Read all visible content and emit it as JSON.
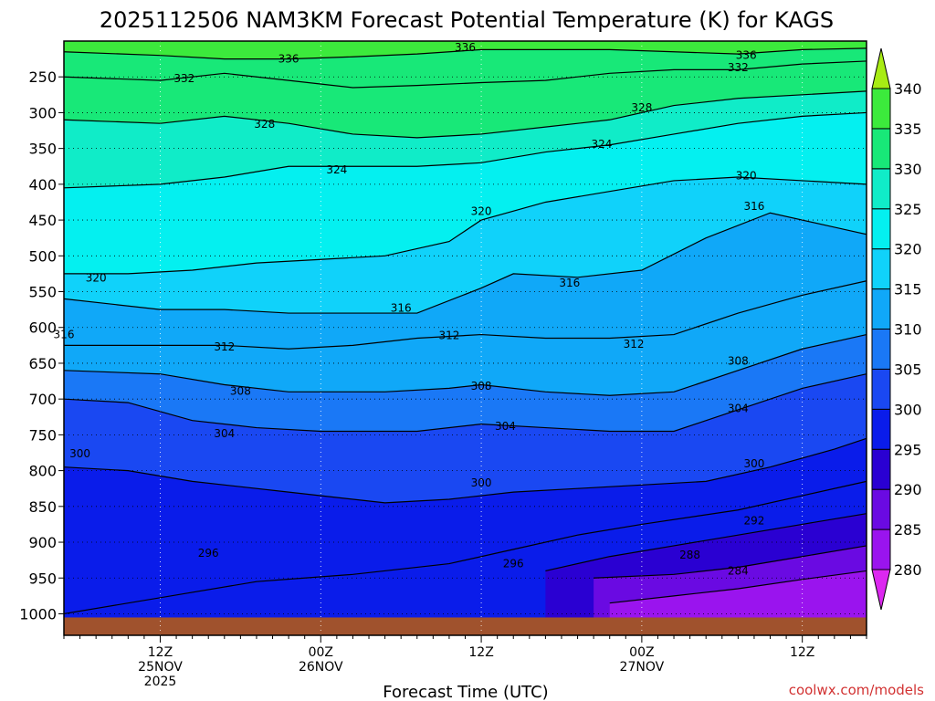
{
  "colors": {
    "ground": "#a0522d",
    "contour": "#000000",
    "credit": "#d23232"
  },
  "chart_data": {
    "type": "heatmap",
    "title": "2025112506 NAM3KM Forecast Potential Temperature (K) for KAGS",
    "xlabel": "Forecast Time (UTC)",
    "ylabel": "",
    "credit": "coolwx.com/models",
    "x_range_hours": [
      -6,
      44
    ],
    "y_range_hPa": [
      200,
      1030
    ],
    "y_ticks": [
      {
        "value": 250,
        "label": "250"
      },
      {
        "value": 300,
        "label": "300"
      },
      {
        "value": 350,
        "label": "350"
      },
      {
        "value": 400,
        "label": "400"
      },
      {
        "value": 450,
        "label": "450"
      },
      {
        "value": 500,
        "label": "500"
      },
      {
        "value": 550,
        "label": "550"
      },
      {
        "value": 600,
        "label": "600"
      },
      {
        "value": 650,
        "label": "650"
      },
      {
        "value": 700,
        "label": "700"
      },
      {
        "value": 750,
        "label": "750"
      },
      {
        "value": 800,
        "label": "800"
      },
      {
        "value": 850,
        "label": "850"
      },
      {
        "value": 900,
        "label": "900"
      },
      {
        "value": 950,
        "label": "950"
      },
      {
        "value": 1000,
        "label": "1000"
      }
    ],
    "x_ticks": [
      {
        "hours": 0,
        "label": "12Z",
        "sub": "25NOV",
        "sub2": "2025"
      },
      {
        "hours": 10,
        "label": "00Z",
        "sub": "26NOV",
        "sub2": ""
      },
      {
        "hours": 20,
        "label": "12Z",
        "sub": "",
        "sub2": ""
      },
      {
        "hours": 30,
        "label": "00Z",
        "sub": "27NOV",
        "sub2": ""
      },
      {
        "hours": 40,
        "label": "12Z",
        "sub": "",
        "sub2": ""
      }
    ],
    "colorbar": {
      "levels": [
        280,
        285,
        290,
        295,
        300,
        305,
        310,
        315,
        320,
        325,
        330,
        335,
        340
      ],
      "colors": [
        "#dc28f0",
        "#9a14ee",
        "#6a0ae2",
        "#2a00d2",
        "#0a1cea",
        "#1a48f2",
        "#1a78f6",
        "#10a8f8",
        "#10d2fa",
        "#04f0f0",
        "#10ecc8",
        "#18e878",
        "#3cea3c",
        "#a8ec14"
      ],
      "labels": [
        "280",
        "285",
        "290",
        "295",
        "300",
        "305",
        "310",
        "315",
        "320",
        "325",
        "330",
        "335",
        "340"
      ]
    },
    "contour_levels": [
      284,
      288,
      292,
      296,
      300,
      304,
      308,
      312,
      316,
      320,
      324,
      328,
      332,
      336
    ],
    "contours": [
      {
        "value": 284,
        "points": [
          [
            28,
            985
          ],
          [
            32,
            975
          ],
          [
            36,
            965
          ],
          [
            40,
            952
          ],
          [
            44,
            940
          ]
        ]
      },
      {
        "value": 288,
        "points": [
          [
            27,
            950
          ],
          [
            32,
            945
          ],
          [
            36,
            935
          ],
          [
            40,
            920
          ],
          [
            44,
            905
          ]
        ]
      },
      {
        "value": 292,
        "points": [
          [
            24,
            940
          ],
          [
            28,
            920
          ],
          [
            32,
            905
          ],
          [
            36,
            890
          ],
          [
            40,
            875
          ],
          [
            44,
            860
          ]
        ]
      },
      {
        "value": 296,
        "points": [
          [
            -6,
            1000
          ],
          [
            2,
            970
          ],
          [
            6,
            955
          ],
          [
            12,
            945
          ],
          [
            18,
            930
          ],
          [
            22,
            910
          ],
          [
            26,
            890
          ],
          [
            30,
            875
          ],
          [
            36,
            855
          ],
          [
            40,
            835
          ],
          [
            44,
            815
          ]
        ]
      },
      {
        "value": 300,
        "points": [
          [
            -6,
            795
          ],
          [
            -2,
            800
          ],
          [
            2,
            815
          ],
          [
            8,
            830
          ],
          [
            14,
            845
          ],
          [
            18,
            840
          ],
          [
            22,
            830
          ],
          [
            26,
            825
          ],
          [
            30,
            820
          ],
          [
            34,
            815
          ],
          [
            38,
            795
          ],
          [
            42,
            770
          ],
          [
            44,
            755
          ]
        ]
      },
      {
        "value": 304,
        "points": [
          [
            -6,
            700
          ],
          [
            -2,
            705
          ],
          [
            2,
            730
          ],
          [
            6,
            740
          ],
          [
            10,
            745
          ],
          [
            16,
            745
          ],
          [
            20,
            735
          ],
          [
            24,
            740
          ],
          [
            28,
            745
          ],
          [
            32,
            745
          ],
          [
            36,
            715
          ],
          [
            40,
            685
          ],
          [
            44,
            665
          ]
        ]
      },
      {
        "value": 308,
        "points": [
          [
            -6,
            660
          ],
          [
            0,
            665
          ],
          [
            4,
            680
          ],
          [
            8,
            690
          ],
          [
            14,
            690
          ],
          [
            18,
            685
          ],
          [
            20,
            680
          ],
          [
            24,
            690
          ],
          [
            28,
            695
          ],
          [
            32,
            690
          ],
          [
            36,
            660
          ],
          [
            40,
            630
          ],
          [
            44,
            610
          ]
        ]
      },
      {
        "value": 312,
        "points": [
          [
            -6,
            625
          ],
          [
            0,
            625
          ],
          [
            4,
            625
          ],
          [
            8,
            630
          ],
          [
            12,
            625
          ],
          [
            16,
            615
          ],
          [
            20,
            610
          ],
          [
            24,
            615
          ],
          [
            28,
            615
          ],
          [
            32,
            610
          ],
          [
            36,
            580
          ],
          [
            40,
            555
          ],
          [
            44,
            535
          ]
        ]
      },
      {
        "value": 316,
        "points": [
          [
            -6,
            560
          ],
          [
            0,
            575
          ],
          [
            4,
            575
          ],
          [
            8,
            580
          ],
          [
            12,
            580
          ],
          [
            16,
            580
          ],
          [
            20,
            545
          ],
          [
            22,
            525
          ],
          [
            26,
            530
          ],
          [
            30,
            520
          ],
          [
            34,
            475
          ],
          [
            38,
            440
          ],
          [
            42,
            460
          ],
          [
            44,
            470
          ]
        ]
      },
      {
        "value": 320,
        "points": [
          [
            -6,
            525
          ],
          [
            -2,
            525
          ],
          [
            2,
            520
          ],
          [
            6,
            510
          ],
          [
            10,
            505
          ],
          [
            14,
            500
          ],
          [
            18,
            480
          ],
          [
            20,
            450
          ],
          [
            24,
            425
          ],
          [
            28,
            410
          ],
          [
            32,
            395
          ],
          [
            36,
            390
          ],
          [
            40,
            395
          ],
          [
            44,
            400
          ]
        ]
      },
      {
        "value": 324,
        "points": [
          [
            -6,
            405
          ],
          [
            0,
            400
          ],
          [
            4,
            390
          ],
          [
            8,
            375
          ],
          [
            12,
            375
          ],
          [
            16,
            375
          ],
          [
            20,
            370
          ],
          [
            24,
            355
          ],
          [
            28,
            345
          ],
          [
            32,
            330
          ],
          [
            36,
            315
          ],
          [
            40,
            305
          ],
          [
            44,
            300
          ]
        ]
      },
      {
        "value": 328,
        "points": [
          [
            -6,
            310
          ],
          [
            0,
            315
          ],
          [
            4,
            305
          ],
          [
            8,
            315
          ],
          [
            12,
            330
          ],
          [
            16,
            335
          ],
          [
            20,
            330
          ],
          [
            24,
            320
          ],
          [
            28,
            310
          ],
          [
            32,
            290
          ],
          [
            36,
            280
          ],
          [
            40,
            275
          ],
          [
            44,
            270
          ]
        ]
      },
      {
        "value": 332,
        "points": [
          [
            -6,
            250
          ],
          [
            0,
            255
          ],
          [
            4,
            245
          ],
          [
            8,
            255
          ],
          [
            12,
            265
          ],
          [
            16,
            262
          ],
          [
            20,
            258
          ],
          [
            24,
            255
          ],
          [
            28,
            245
          ],
          [
            32,
            240
          ],
          [
            36,
            240
          ],
          [
            40,
            232
          ],
          [
            44,
            228
          ]
        ]
      },
      {
        "value": 336,
        "points": [
          [
            -6,
            215
          ],
          [
            0,
            220
          ],
          [
            4,
            225
          ],
          [
            8,
            225
          ],
          [
            12,
            222
          ],
          [
            16,
            218
          ],
          [
            20,
            212
          ],
          [
            24,
            212
          ],
          [
            28,
            212
          ],
          [
            32,
            215
          ],
          [
            36,
            218
          ],
          [
            40,
            212
          ],
          [
            44,
            210
          ]
        ]
      }
    ],
    "contour_labels": [
      {
        "text": "336",
        "hours": 19,
        "p": 209
      },
      {
        "text": "336",
        "hours": 8,
        "p": 225
      },
      {
        "text": "336",
        "hours": 36.5,
        "p": 220
      },
      {
        "text": "332",
        "hours": 1.5,
        "p": 252
      },
      {
        "text": "332",
        "hours": 36,
        "p": 237
      },
      {
        "text": "328",
        "hours": 6.5,
        "p": 316
      },
      {
        "text": "328",
        "hours": 30,
        "p": 293
      },
      {
        "text": "324",
        "hours": 11,
        "p": 380
      },
      {
        "text": "324",
        "hours": 27.5,
        "p": 344
      },
      {
        "text": "320",
        "hours": -4,
        "p": 531
      },
      {
        "text": "320",
        "hours": 20,
        "p": 438
      },
      {
        "text": "320",
        "hours": 36.5,
        "p": 388
      },
      {
        "text": "316",
        "hours": -6,
        "p": 610
      },
      {
        "text": "316",
        "hours": 15,
        "p": 573
      },
      {
        "text": "316",
        "hours": 25.5,
        "p": 538
      },
      {
        "text": "316",
        "hours": 37,
        "p": 431
      },
      {
        "text": "312",
        "hours": 4,
        "p": 627
      },
      {
        "text": "312",
        "hours": 18,
        "p": 611
      },
      {
        "text": "312",
        "hours": 29.5,
        "p": 623
      },
      {
        "text": "308",
        "hours": 5,
        "p": 689
      },
      {
        "text": "308",
        "hours": 20,
        "p": 682
      },
      {
        "text": "308",
        "hours": 36,
        "p": 647
      },
      {
        "text": "304",
        "hours": 4,
        "p": 748
      },
      {
        "text": "304",
        "hours": 21.5,
        "p": 738
      },
      {
        "text": "304",
        "hours": 36,
        "p": 713
      },
      {
        "text": "300",
        "hours": -5,
        "p": 776
      },
      {
        "text": "300",
        "hours": 20,
        "p": 817
      },
      {
        "text": "300",
        "hours": 37,
        "p": 790
      },
      {
        "text": "296",
        "hours": 3,
        "p": 915
      },
      {
        "text": "296",
        "hours": 22,
        "p": 930
      },
      {
        "text": "292",
        "hours": 37,
        "p": 870
      },
      {
        "text": "288",
        "hours": 33,
        "p": 918
      },
      {
        "text": "284",
        "hours": 36,
        "p": 940
      }
    ]
  }
}
